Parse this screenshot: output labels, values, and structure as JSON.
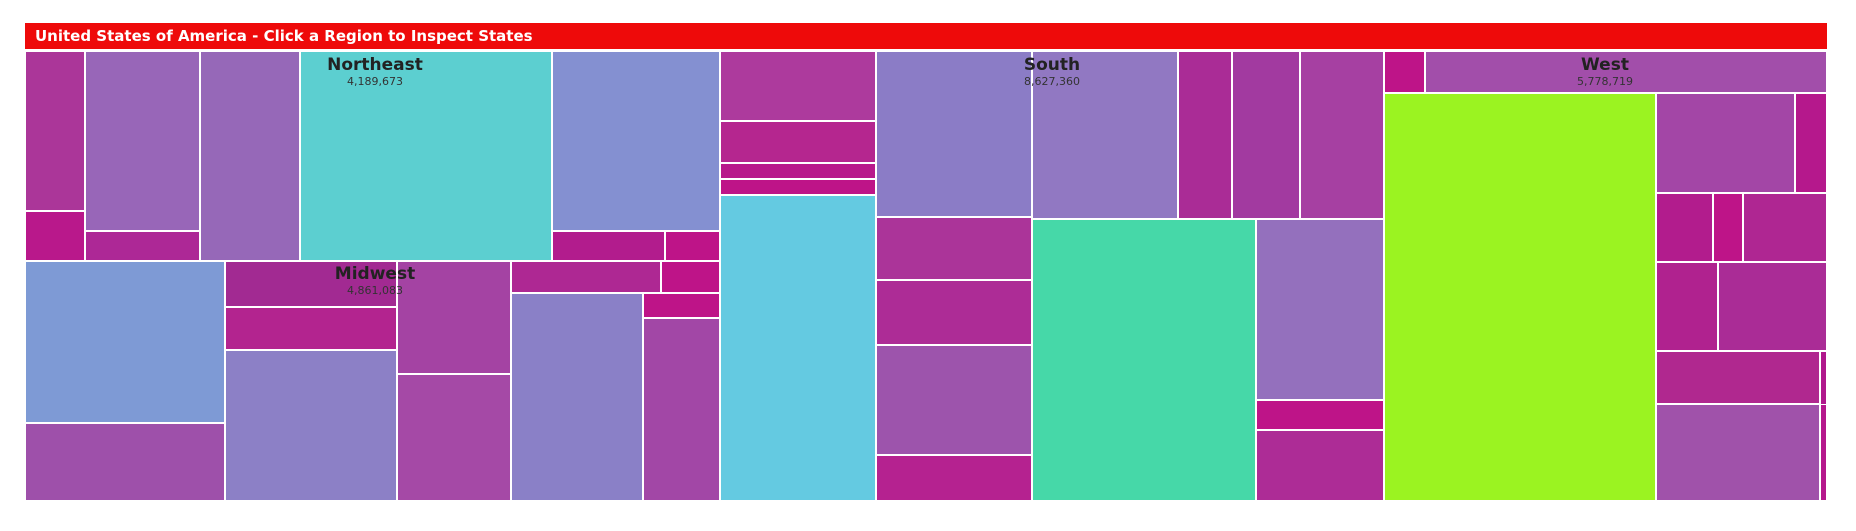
{
  "header": {
    "title": "United States of America - Click a Region to Inspect States",
    "background": "#ee0a0a"
  },
  "chart_data": {
    "type": "treemap",
    "title": "United States of America - Click a Region to Inspect States",
    "regions": [
      {
        "name": "Northeast",
        "value_label": "4,189,673",
        "value": 4189673,
        "cells": [
          {
            "color": "#ab3699"
          },
          {
            "color": "#b9188b"
          },
          {
            "color": "#9866b8"
          },
          {
            "color": "#ad2896"
          },
          {
            "color": "#9668b8"
          },
          {
            "color": "#5ccfd0"
          },
          {
            "color": "#8490d1"
          },
          {
            "color": "#b21c8d"
          },
          {
            "color": "#be1488"
          }
        ]
      },
      {
        "name": "Midwest",
        "value_label": "4,861,083",
        "value": 4861083,
        "cells": [
          {
            "color": "#7e9ad5"
          },
          {
            "color": "#9e50aa"
          },
          {
            "color": "#a22a92"
          },
          {
            "color": "#b3248f"
          },
          {
            "color": "#8c80c6"
          },
          {
            "color": "#a443a3"
          },
          {
            "color": "#a549a6"
          },
          {
            "color": "#ae2893"
          },
          {
            "color": "#be1488"
          },
          {
            "color": "#be1488"
          },
          {
            "color": "#8a80c7"
          },
          {
            "color": "#a247a6"
          }
        ]
      },
      {
        "name": "South",
        "value_label": "8,627,360",
        "value": 8627360,
        "cells": [
          {
            "color": "#ad3a9d"
          },
          {
            "color": "#b5268f"
          },
          {
            "color": "#b8198b"
          },
          {
            "color": "#be1488"
          },
          {
            "color": "#64cae1"
          },
          {
            "color": "#8b7cc6"
          },
          {
            "color": "#ab3499"
          },
          {
            "color": "#ad2c96"
          },
          {
            "color": "#9d54ac"
          },
          {
            "color": "#b52290"
          },
          {
            "color": "#9178c2"
          },
          {
            "color": "#aa2c96"
          },
          {
            "color": "#a23aa0"
          },
          {
            "color": "#a640a2"
          },
          {
            "color": "#46d8a8"
          },
          {
            "color": "#9470bd"
          },
          {
            "color": "#be1488"
          },
          {
            "color": "#ad2c96"
          }
        ]
      },
      {
        "name": "West",
        "value_label": "5,778,719",
        "value": 5778719,
        "cells": [
          {
            "color": "#be1488"
          },
          {
            "color": "#a24eaa"
          },
          {
            "color": "#9bf321"
          },
          {
            "color": "#a346a6"
          },
          {
            "color": "#b5188c"
          },
          {
            "color": "#b21c8d"
          },
          {
            "color": "#be1488"
          },
          {
            "color": "#af2692"
          },
          {
            "color": "#b0228f"
          },
          {
            "color": "#aa2c96"
          },
          {
            "color": "#b0288f"
          },
          {
            "color": "#b0188c"
          },
          {
            "color": "#a052aa"
          },
          {
            "color": "#b5188c"
          }
        ]
      }
    ]
  }
}
